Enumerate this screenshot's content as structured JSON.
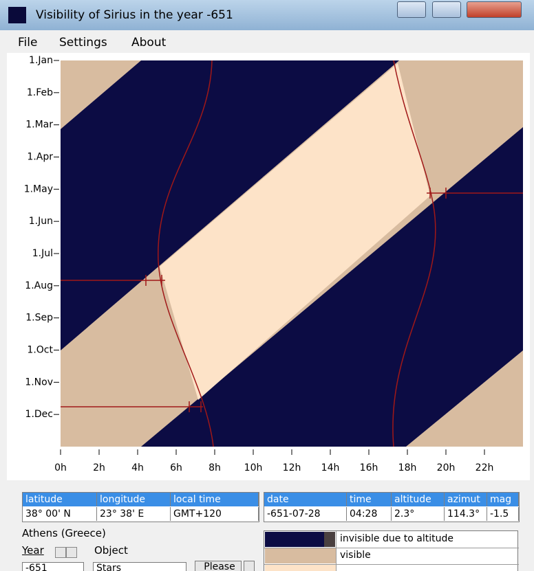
{
  "window": {
    "title": "Visibility of Sirius in the year -651"
  },
  "menu": [
    "File",
    "Settings",
    "About"
  ],
  "chart": {
    "xlim": [
      0,
      24
    ],
    "xticks": [
      {
        "value": 0,
        "label": "0h"
      },
      {
        "value": 2,
        "label": "2h"
      },
      {
        "value": 4,
        "label": "4h"
      },
      {
        "value": 6,
        "label": "6h"
      },
      {
        "value": 8,
        "label": "8h"
      },
      {
        "value": 10,
        "label": "10h"
      },
      {
        "value": 12,
        "label": "12h"
      },
      {
        "value": 14,
        "label": "14h"
      },
      {
        "value": 16,
        "label": "16h"
      },
      {
        "value": 18,
        "label": "18h"
      },
      {
        "value": 20,
        "label": "20h"
      },
      {
        "value": 22,
        "label": "22h"
      }
    ],
    "ylim": [
      1,
      13
    ],
    "yticks": [
      {
        "value": 1,
        "label": "1.Jan"
      },
      {
        "value": 2,
        "label": "1.Feb"
      },
      {
        "value": 3,
        "label": "1.Mar"
      },
      {
        "value": 4,
        "label": "1.Apr"
      },
      {
        "value": 5,
        "label": "1.May"
      },
      {
        "value": 6,
        "label": "1.Jun"
      },
      {
        "value": 7,
        "label": "1.Jul"
      },
      {
        "value": 8,
        "label": "1.Aug"
      },
      {
        "value": 9,
        "label": "1.Sep"
      },
      {
        "value": 10,
        "label": "1.Oct"
      },
      {
        "value": 11,
        "label": "1.Nov"
      },
      {
        "value": 12,
        "label": "1.Dec"
      }
    ]
  },
  "location_table": {
    "headers": [
      "latitude",
      "longitude",
      "local time"
    ],
    "values": [
      "38° 00'  N",
      "23° 38'  E",
      "GMT+120"
    ]
  },
  "event_table": {
    "headers": [
      "date",
      "time",
      "altitude",
      "azimut",
      "mag"
    ],
    "values": [
      "-651-07-28",
      "04:28",
      "2.3°",
      "114.3°",
      "-1.5"
    ]
  },
  "place": "Athens (Greece)",
  "controls": {
    "year_label": "Year",
    "object_label": "Object",
    "year_value": "-651",
    "object_value": "Stars",
    "button": "Please"
  },
  "legend": [
    "invisible due to altitude",
    "visible"
  ]
}
